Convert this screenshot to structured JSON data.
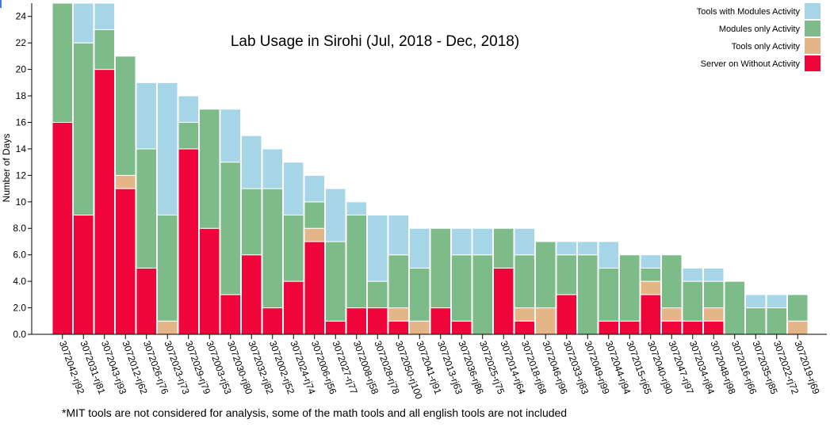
{
  "chart_data": {
    "type": "bar",
    "stacked": true,
    "title": "Lab Usage in Sirohi (Jul, 2018 - Dec, 2018)",
    "xlabel": "",
    "ylabel": "Number of Days",
    "ylim": [
      0,
      25
    ],
    "yticks": [
      "0.0",
      "2.0",
      "4.0",
      "6.0",
      "8.0",
      "10",
      "12",
      "14",
      "16",
      "18",
      "20",
      "22",
      "24"
    ],
    "legend_position": "top-right",
    "categories": [
      "3072042-rj92",
      "3072031-rj81",
      "3072043-rj93",
      "3072012-rj62",
      "3072026-rj76",
      "3072023-rj73",
      "3072029-rj79",
      "3072003-rj53",
      "3072030-rj80",
      "3072032-rj82",
      "3072002-rj52",
      "3072024-rj74",
      "3072006-rj56",
      "3072027-rj77",
      "3072008-rj58",
      "3072028-rj78",
      "3072050-rj100",
      "3072041-rj91",
      "3072013-rj63",
      "3072036-rj86",
      "3072025-rj75",
      "3072014-rj64",
      "3072018-rj68",
      "3072046-rj96",
      "3072033-rj83",
      "3072049-rj99",
      "3072044-rj94",
      "3072015-rj65",
      "3072040-rj90",
      "3072047-rj97",
      "3072034-rj84",
      "3072048-rj98",
      "3072016-rj66",
      "3072035-rj85",
      "3072022-rj72",
      "3072019-rj69"
    ],
    "series": [
      {
        "name": "Server on Without Activity",
        "color": "#f0053a",
        "values": [
          16,
          9,
          20,
          11,
          5,
          0,
          14,
          8,
          3,
          6,
          2,
          4,
          7,
          1,
          2,
          2,
          1,
          0,
          2,
          1,
          0,
          5,
          1,
          0,
          3,
          0,
          1,
          1,
          3,
          1,
          1,
          1,
          0,
          0,
          0,
          0
        ]
      },
      {
        "name": "Tools only Activity",
        "color": "#e4b687",
        "values": [
          0,
          0,
          0,
          1,
          0,
          1,
          0,
          0,
          0,
          0,
          0,
          0,
          1,
          0,
          0,
          0,
          1,
          1,
          0,
          0,
          0,
          0,
          1,
          2,
          0,
          0,
          0,
          0,
          1,
          1,
          0,
          1,
          0,
          0,
          0,
          1
        ]
      },
      {
        "name": "Modules only Activity",
        "color": "#7dbc88",
        "values": [
          9,
          13,
          3,
          9,
          9,
          8,
          2,
          9,
          10,
          5,
          9,
          5,
          2,
          6,
          7,
          2,
          4,
          4,
          6,
          5,
          6,
          3,
          4,
          5,
          3,
          6,
          4,
          5,
          1,
          4,
          3,
          2,
          4,
          2,
          2,
          2
        ]
      },
      {
        "name": "Tools with Modules Activity",
        "color": "#a5d5e7",
        "values": [
          0,
          3,
          2,
          0,
          5,
          10,
          2,
          0,
          4,
          4,
          3,
          4,
          2,
          4,
          1,
          5,
          3,
          3,
          0,
          2,
          2,
          0,
          2,
          0,
          1,
          1,
          2,
          0,
          1,
          0,
          1,
          1,
          0,
          1,
          1,
          0
        ]
      }
    ],
    "legend_order": [
      "Tools with Modules Activity",
      "Modules only Activity",
      "Tools only Activity",
      "Server on Without Activity"
    ],
    "footnote": "*MIT tools are not considered for analysis, some of the math tools and all english tools are not included"
  }
}
